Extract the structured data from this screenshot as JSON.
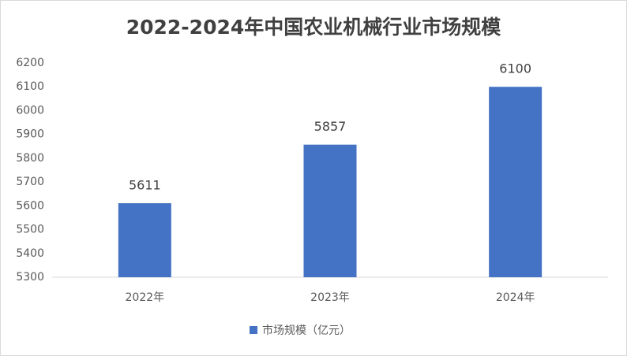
{
  "chart_data": {
    "type": "bar",
    "title": "2022-2024年中国农业机械行业市场规模",
    "categories": [
      "2022年",
      "2023年",
      "2024年"
    ],
    "series": [
      {
        "name": "市场规模（亿元）",
        "color": "#4472c4",
        "values": [
          5611,
          5857,
          6100
        ]
      }
    ],
    "ylim": [
      5300,
      6200
    ],
    "yticks": [
      5300,
      5400,
      5500,
      5600,
      5700,
      5800,
      5900,
      6000,
      6100,
      6200
    ],
    "grid": false,
    "data_labels": true,
    "legend": "bottom"
  }
}
